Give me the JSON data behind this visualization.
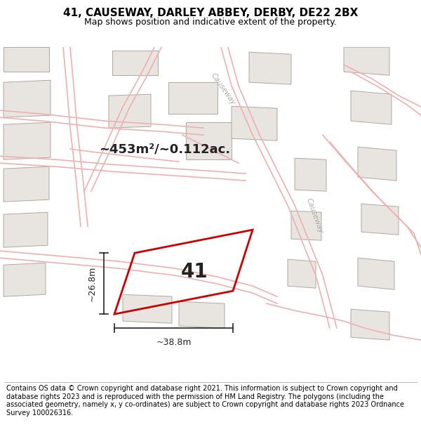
{
  "title": "41, CAUSEWAY, DARLEY ABBEY, DERBY, DE22 2BX",
  "subtitle": "Map shows position and indicative extent of the property.",
  "footer": "Contains OS data © Crown copyright and database right 2021. This information is subject to Crown copyright and database rights 2023 and is reproduced with the permission of HM Land Registry. The polygons (including the associated geometry, namely x, y co-ordinates) are subject to Crown copyright and database rights 2023 Ordnance Survey 100026316.",
  "area_text": "~453m²/~0.112ac.",
  "property_label": "41",
  "dim_width": "~38.8m",
  "dim_height": "~26.8m",
  "map_bg": "#f7f4f0",
  "building_fill": "#e8e4e0",
  "building_edge": "#b8b0a8",
  "road_color": "#f0c8c8",
  "road_edge": "#e8b0b0",
  "property_edge": "#cc0000",
  "causeway_label": "Causeway",
  "title_fontsize": 11,
  "subtitle_fontsize": 9,
  "footer_fontsize": 7.0,
  "dim_line_color": "#222222",
  "label_color": "#222222"
}
